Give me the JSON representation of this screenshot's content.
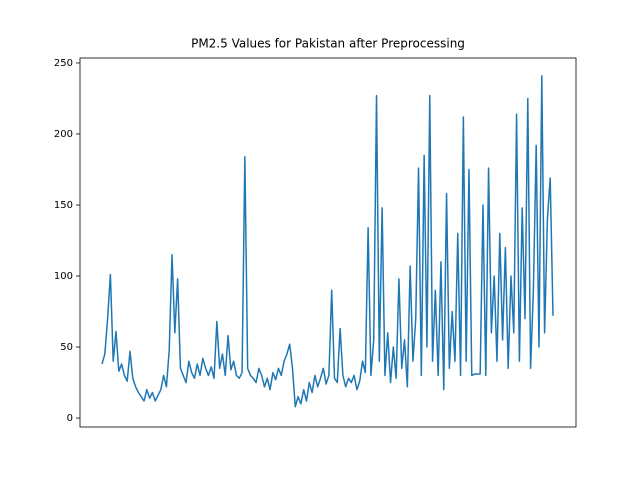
{
  "chart_data": {
    "type": "line",
    "title": "PM2.5 Values for Pakistan after Preprocessing",
    "color": "#1f77b4",
    "ylim": [
      -6.3,
      253.5
    ],
    "yticks": [
      0,
      50,
      100,
      150,
      200,
      250
    ],
    "values": [
      38,
      45,
      70,
      101,
      40,
      61,
      33,
      38,
      30,
      26,
      47,
      28,
      22,
      18,
      15,
      12,
      20,
      14,
      18,
      12,
      16,
      20,
      30,
      22,
      48,
      115,
      60,
      98,
      35,
      30,
      25,
      40,
      32,
      28,
      38,
      30,
      42,
      35,
      30,
      36,
      28,
      68,
      35,
      45,
      30,
      58,
      34,
      40,
      30,
      28,
      32,
      184,
      35,
      30,
      28,
      25,
      35,
      30,
      22,
      28,
      20,
      32,
      27,
      35,
      30,
      40,
      45,
      52,
      35,
      8,
      15,
      10,
      20,
      12,
      25,
      18,
      30,
      22,
      28,
      35,
      24,
      30,
      90,
      28,
      25,
      63,
      30,
      22,
      28,
      25,
      30,
      20,
      26,
      40,
      32,
      134,
      30,
      55,
      227,
      40,
      148,
      30,
      60,
      25,
      50,
      28,
      98,
      35,
      55,
      22,
      107,
      40,
      70,
      176,
      30,
      185,
      50,
      227,
      40,
      90,
      30,
      110,
      20,
      158,
      35,
      75,
      40,
      130,
      30,
      212,
      40,
      175,
      30,
      31,
      31,
      31,
      150,
      30,
      176,
      60,
      100,
      40,
      130,
      55,
      120,
      35,
      100,
      60,
      214,
      40,
      148,
      70,
      225,
      35,
      90,
      192,
      50,
      241,
      60,
      140,
      169,
      72
    ]
  }
}
